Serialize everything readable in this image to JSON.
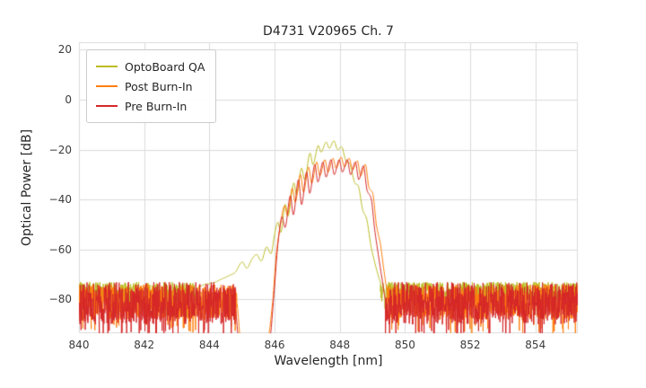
{
  "chart_data": {
    "type": "line",
    "title": "D4731 V20965 Ch. 7",
    "xlabel": "Wavelength [nm]",
    "ylabel": "Optical Power [dB]",
    "xlim": [
      840,
      855.3
    ],
    "ylim": [
      -93.5,
      23
    ],
    "xticks": [
      840,
      842,
      844,
      846,
      848,
      850,
      852,
      854
    ],
    "xtick_labels": [
      "840",
      "842",
      "844",
      "846",
      "848",
      "850",
      "852",
      "854"
    ],
    "yticks": [
      20,
      0,
      -20,
      -40,
      -60,
      -80
    ],
    "ytick_labels": [
      "20",
      "0",
      "−20",
      "−40",
      "−60",
      "−80"
    ],
    "grid": true,
    "grid_color": "#dcdcdc",
    "background_color": "#ffffff",
    "legend_position": "upper-left",
    "noise_step": 0.008,
    "seed": 1234,
    "series": [
      {
        "name": "OptoBoard QA",
        "color": "#bcbd22",
        "noise_segments": [
          {
            "x0": 840.0,
            "x1": 843.6,
            "min": -81,
            "max": -73
          },
          {
            "x0": 849.25,
            "x1": 855.3,
            "min": -81,
            "max": -73
          }
        ],
        "signal": [
          [
            843.6,
            -75.5
          ],
          [
            843.85,
            -74.0
          ],
          [
            844.1,
            -73.5
          ],
          [
            844.35,
            -72.0
          ],
          [
            844.6,
            -70.5
          ],
          [
            844.8,
            -69.0
          ],
          [
            845.0,
            -65.0
          ],
          [
            845.15,
            -67.5
          ],
          [
            845.3,
            -64.0
          ],
          [
            845.45,
            -62.0
          ],
          [
            845.6,
            -64.5
          ],
          [
            845.75,
            -59.0
          ],
          [
            845.9,
            -61.5
          ],
          [
            846.0,
            -54.0
          ],
          [
            846.1,
            -49.0
          ],
          [
            846.2,
            -53.0
          ],
          [
            846.32,
            -42.0
          ],
          [
            846.42,
            -46.5
          ],
          [
            846.58,
            -33.5
          ],
          [
            846.68,
            -38.0
          ],
          [
            846.82,
            -27.5
          ],
          [
            846.93,
            -32.0
          ],
          [
            847.08,
            -21.5
          ],
          [
            847.18,
            -26.0
          ],
          [
            847.33,
            -18.5
          ],
          [
            847.43,
            -21.0
          ],
          [
            847.58,
            -17.0
          ],
          [
            847.68,
            -19.5
          ],
          [
            847.82,
            -16.5
          ],
          [
            847.93,
            -20.0
          ],
          [
            848.07,
            -19.0
          ],
          [
            848.17,
            -24.0
          ],
          [
            848.32,
            -26.0
          ],
          [
            848.45,
            -33.0
          ],
          [
            848.58,
            -35.0
          ],
          [
            848.7,
            -44.0
          ],
          [
            848.83,
            -48.0
          ],
          [
            848.95,
            -58.0
          ],
          [
            849.05,
            -64.0
          ],
          [
            849.15,
            -69.0
          ],
          [
            849.25,
            -73.0
          ]
        ]
      },
      {
        "name": "Post Burn-In",
        "color": "#ff7f0e",
        "noise_segments": [
          {
            "x0": 840.0,
            "x1": 844.85,
            "min": -88,
            "max": -74
          },
          {
            "x0": 849.45,
            "x1": 855.3,
            "min": -88,
            "max": -74
          }
        ],
        "signal": [
          [
            844.85,
            -82.0
          ],
          [
            844.95,
            -96.0
          ],
          [
            845.8,
            -96.0
          ],
          [
            845.95,
            -80.0
          ],
          [
            846.05,
            -62.0
          ],
          [
            846.18,
            -50.0
          ],
          [
            846.3,
            -42.5
          ],
          [
            846.4,
            -46.0
          ],
          [
            846.54,
            -35.5
          ],
          [
            846.64,
            -41.0
          ],
          [
            846.79,
            -30.0
          ],
          [
            846.89,
            -37.0
          ],
          [
            847.04,
            -27.0
          ],
          [
            847.14,
            -33.5
          ],
          [
            847.29,
            -25.0
          ],
          [
            847.39,
            -30.5
          ],
          [
            847.54,
            -24.0
          ],
          [
            847.64,
            -29.0
          ],
          [
            847.79,
            -23.5
          ],
          [
            847.89,
            -27.5
          ],
          [
            848.04,
            -23.0
          ],
          [
            848.14,
            -27.0
          ],
          [
            848.29,
            -23.5
          ],
          [
            848.39,
            -28.0
          ],
          [
            848.54,
            -24.5
          ],
          [
            848.64,
            -30.5
          ],
          [
            848.79,
            -26.0
          ],
          [
            848.89,
            -35.0
          ],
          [
            849.02,
            -38.0
          ],
          [
            849.12,
            -50.0
          ],
          [
            849.25,
            -58.0
          ],
          [
            849.35,
            -68.0
          ],
          [
            849.45,
            -76.0
          ]
        ]
      },
      {
        "name": "Pre Burn-In",
        "color": "#d62728",
        "noise_segments": [
          {
            "x0": 840.0,
            "x1": 844.8,
            "min": -90,
            "max": -73
          },
          {
            "x0": 849.4,
            "x1": 855.3,
            "min": -90,
            "max": -73
          }
        ],
        "signal": [
          [
            844.8,
            -84.0
          ],
          [
            844.9,
            -97.0
          ],
          [
            845.85,
            -97.0
          ],
          [
            846.0,
            -75.0
          ],
          [
            846.1,
            -58.0
          ],
          [
            846.22,
            -47.0
          ],
          [
            846.33,
            -51.0
          ],
          [
            846.48,
            -38.5
          ],
          [
            846.58,
            -46.0
          ],
          [
            846.73,
            -32.0
          ],
          [
            846.83,
            -42.0
          ],
          [
            846.98,
            -29.0
          ],
          [
            847.08,
            -37.5
          ],
          [
            847.23,
            -26.0
          ],
          [
            847.33,
            -33.0
          ],
          [
            847.48,
            -25.0
          ],
          [
            847.58,
            -31.0
          ],
          [
            847.73,
            -24.0
          ],
          [
            847.83,
            -30.0
          ],
          [
            847.98,
            -24.0
          ],
          [
            848.08,
            -29.0
          ],
          [
            848.23,
            -24.0
          ],
          [
            848.33,
            -30.0
          ],
          [
            848.48,
            -25.0
          ],
          [
            848.58,
            -32.0
          ],
          [
            848.73,
            -26.5
          ],
          [
            848.83,
            -36.0
          ],
          [
            848.97,
            -40.0
          ],
          [
            849.07,
            -52.0
          ],
          [
            849.18,
            -62.0
          ],
          [
            849.3,
            -72.0
          ],
          [
            849.4,
            -80.0
          ]
        ]
      }
    ]
  }
}
